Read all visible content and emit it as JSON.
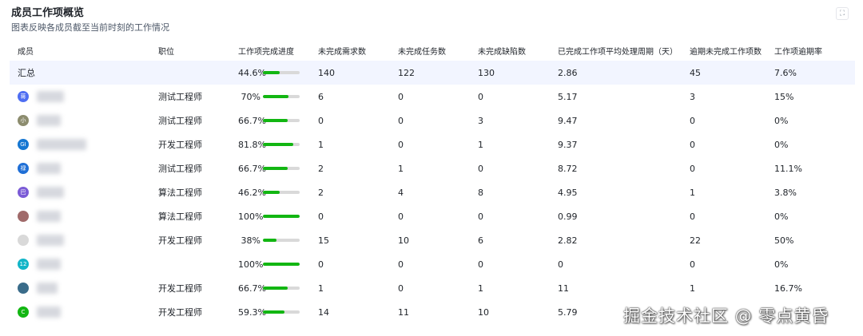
{
  "panel": {
    "title": "成员工作项概览",
    "subtitle": "图表反映各成员截至当前时刻的工作情况"
  },
  "columns": {
    "member": "成员",
    "role": "职位",
    "progress": "工作项完成进度",
    "open_requirements": "未完成需求数",
    "open_tasks": "未完成任务数",
    "open_defects": "未完成缺陷数",
    "avg_cycle": "已完成工作项平均处理周期（天）",
    "overdue": "逾期未完成工作项数",
    "overdue_rate": "工作项逾期率"
  },
  "summary": {
    "label": "汇总",
    "progress_text": "44.6%",
    "progress_value": 0.446,
    "open_requirements": "140",
    "open_tasks": "122",
    "open_defects": "130",
    "avg_cycle": "2.86",
    "overdue": "45",
    "overdue_rate": "7.6%"
  },
  "rows": [
    {
      "avatar_text": "蒋",
      "avatar_color": "#4e6ef2",
      "role": "测试工程师",
      "progress_text": "70%",
      "progress_value": 0.7,
      "open_requirements": "6",
      "open_tasks": "0",
      "open_defects": "0",
      "avg_cycle": "5.17",
      "overdue": "3",
      "overdue_rate": "15%"
    },
    {
      "avatar_text": "小",
      "avatar_color": "#8c8c6e",
      "role": "测试工程师",
      "progress_text": "66.7%",
      "progress_value": 0.667,
      "open_requirements": "0",
      "open_tasks": "0",
      "open_defects": "3",
      "avg_cycle": "9.47",
      "overdue": "0",
      "overdue_rate": "0%"
    },
    {
      "avatar_text": "GI",
      "avatar_color": "#1677d2",
      "role": "开发工程师",
      "progress_text": "81.8%",
      "progress_value": 0.818,
      "open_requirements": "1",
      "open_tasks": "0",
      "open_defects": "1",
      "avg_cycle": "9.37",
      "overdue": "0",
      "overdue_rate": "0%"
    },
    {
      "avatar_text": "禄",
      "avatar_color": "#1f6fd6",
      "role": "测试工程师",
      "progress_text": "66.7%",
      "progress_value": 0.667,
      "open_requirements": "2",
      "open_tasks": "1",
      "open_defects": "0",
      "avg_cycle": "8.72",
      "overdue": "0",
      "overdue_rate": "11.1%"
    },
    {
      "avatar_text": "巴",
      "avatar_color": "#7b5bd6",
      "role": "算法工程师",
      "progress_text": "46.2%",
      "progress_value": 0.462,
      "open_requirements": "2",
      "open_tasks": "4",
      "open_defects": "8",
      "avg_cycle": "4.95",
      "overdue": "1",
      "overdue_rate": "3.8%"
    },
    {
      "avatar_text": "",
      "avatar_color": "#a06a6a",
      "role": "算法工程师",
      "progress_text": "100%",
      "progress_value": 1.0,
      "open_requirements": "0",
      "open_tasks": "0",
      "open_defects": "0",
      "avg_cycle": "0.99",
      "overdue": "0",
      "overdue_rate": "0%"
    },
    {
      "avatar_text": "",
      "avatar_color": "#d9d9d9",
      "role": "开发工程师",
      "progress_text": "38%",
      "progress_value": 0.38,
      "open_requirements": "15",
      "open_tasks": "10",
      "open_defects": "6",
      "avg_cycle": "2.82",
      "overdue": "22",
      "overdue_rate": "50%"
    },
    {
      "avatar_text": "12",
      "avatar_color": "#13b5c8",
      "role": "",
      "progress_text": "100%",
      "progress_value": 1.0,
      "open_requirements": "0",
      "open_tasks": "0",
      "open_defects": "0",
      "avg_cycle": "0",
      "overdue": "0",
      "overdue_rate": "0%"
    },
    {
      "avatar_text": "",
      "avatar_color": "#3a6c8a",
      "role": "开发工程师",
      "progress_text": "66.7%",
      "progress_value": 0.667,
      "open_requirements": "1",
      "open_tasks": "0",
      "open_defects": "1",
      "avg_cycle": "11",
      "overdue": "1",
      "overdue_rate": "16.7%"
    },
    {
      "avatar_text": "C",
      "avatar_color": "#12b612",
      "role": "开发工程师",
      "progress_text": "59.3%",
      "progress_value": 0.593,
      "open_requirements": "14",
      "open_tasks": "11",
      "open_defects": "10",
      "avg_cycle": "5.79",
      "overdue": "",
      "overdue_rate": ""
    }
  ],
  "watermark": "掘金技术社区 @ 零点黄昏"
}
